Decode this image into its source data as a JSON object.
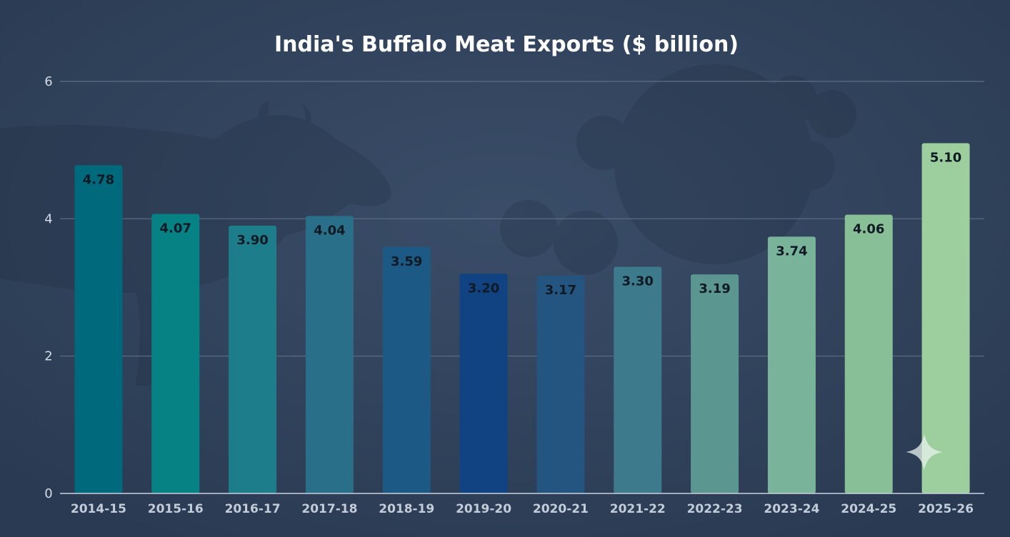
{
  "chart_data": {
    "type": "bar",
    "title": "India's Buffalo Meat Exports ($ billion)",
    "xlabel": "",
    "ylabel": "",
    "ylim": [
      0,
      6
    ],
    "yticks": [
      0,
      2,
      4,
      6
    ],
    "grid": true,
    "categories": [
      "2014-15",
      "2015-16",
      "2016-17",
      "2017-18",
      "2018-19",
      "2019-20",
      "2020-21",
      "2021-22",
      "2022-23",
      "2023-24",
      "2024-25",
      "2025-26"
    ],
    "values": [
      4.78,
      4.07,
      3.9,
      4.04,
      3.59,
      3.2,
      3.17,
      3.3,
      3.19,
      3.74,
      4.06,
      5.1
    ],
    "value_labels": [
      "4.78",
      "4.07",
      "3.90",
      "4.04",
      "3.59",
      "3.20",
      "3.17",
      "3.30",
      "3.19",
      "3.74",
      "4.06",
      "5.10"
    ],
    "bar_colors": [
      "#00697c",
      "#068285",
      "#1d7d8a",
      "#2a6f8a",
      "#1c5a85",
      "#114282",
      "#245580",
      "#3d7a8c",
      "#5c9690",
      "#79b39a",
      "#89bf96",
      "#9ccf9d"
    ],
    "colors": {
      "background": "#2f4058",
      "grid": "#5e6f86",
      "axis": "#c9d2de"
    }
  }
}
